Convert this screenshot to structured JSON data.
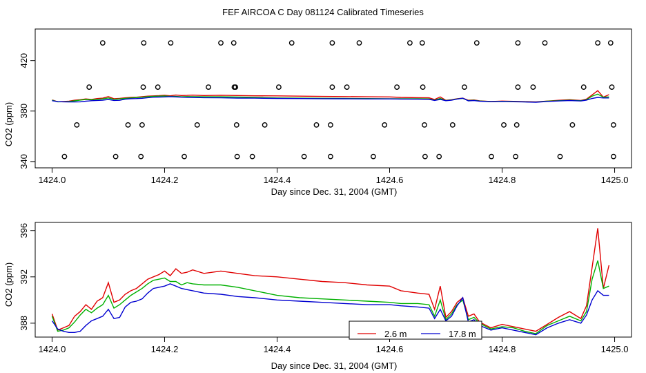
{
  "title": "FEF AIRCOA C  Day 081124  Calibrated Timeseries",
  "chart_data": [
    {
      "type": "scatter+line",
      "xlabel": "Day since Dec. 31, 2004 (GMT)",
      "ylabel": "CO2 (ppm)",
      "xlim": [
        1423.97,
        1425.03
      ],
      "ylim": [
        335,
        445
      ],
      "x_ticks": [
        1424.0,
        1424.2,
        1424.4,
        1424.6,
        1424.8,
        1425.0
      ],
      "x_tick_labels": [
        "1424.0",
        "1424.2",
        "1424.4",
        "1424.6",
        "1424.8",
        "1425.0"
      ],
      "y_ticks": [
        340,
        380,
        420
      ],
      "y_tick_labels": [
        "340",
        "380",
        "420"
      ],
      "calibration_points": {
        "x": [
          1424.09,
          1424.163,
          1424.211,
          1424.3,
          1424.323,
          1424.426,
          1424.498,
          1424.546,
          1424.636,
          1424.658,
          1424.755,
          1424.828,
          1424.876,
          1424.97,
          1424.993,
          1424.066,
          1424.162,
          1424.188,
          1424.278,
          1424.324,
          1424.326,
          1424.403,
          1424.498,
          1424.524,
          1424.613,
          1424.659,
          1424.733,
          1424.828,
          1424.855,
          1424.945,
          1424.995,
          1424.044,
          1424.135,
          1424.16,
          1424.258,
          1424.328,
          1424.378,
          1424.47,
          1424.495,
          1424.591,
          1424.662,
          1424.712,
          1424.803,
          1424.826,
          1424.925,
          1424.998,
          1424.022,
          1424.113,
          1424.158,
          1424.235,
          1424.329,
          1424.356,
          1424.448,
          1424.495,
          1424.571,
          1424.663,
          1424.688,
          1424.781,
          1424.824,
          1424.903,
          1424.998
        ],
        "y": [
          434,
          434,
          434,
          434,
          434,
          434,
          434,
          434,
          434,
          434,
          434,
          434,
          434,
          434,
          434,
          399,
          399,
          399,
          399,
          399,
          399,
          399,
          399,
          399,
          399,
          399,
          399,
          399,
          399,
          399,
          399,
          369,
          369,
          369,
          369,
          369,
          369,
          369,
          369,
          369,
          369,
          369,
          369,
          369,
          369,
          369,
          344,
          344,
          344,
          344,
          344,
          344,
          344,
          344,
          344,
          344,
          344,
          344,
          344,
          344,
          344
        ]
      }
    },
    {
      "type": "line",
      "xlabel": "Day since Dec. 31, 2004 (GMT)",
      "ylabel": "CO2 (ppm)",
      "xlim": [
        1423.97,
        1425.03
      ],
      "ylim": [
        386.8,
        396.7
      ],
      "x_ticks": [
        1424.0,
        1424.2,
        1424.4,
        1424.6,
        1424.8,
        1425.0
      ],
      "x_tick_labels": [
        "1424.0",
        "1424.2",
        "1424.4",
        "1424.6",
        "1424.8",
        "1425.0"
      ],
      "y_ticks": [
        388,
        392,
        396
      ],
      "y_tick_labels": [
        "388",
        "392",
        "396"
      ],
      "x": [
        1424.0,
        1424.01,
        1424.02,
        1424.03,
        1424.04,
        1424.05,
        1424.06,
        1424.07,
        1424.08,
        1424.09,
        1424.1,
        1424.11,
        1424.12,
        1424.13,
        1424.14,
        1424.15,
        1424.16,
        1424.17,
        1424.18,
        1424.19,
        1424.2,
        1424.21,
        1424.22,
        1424.23,
        1424.24,
        1424.25,
        1424.27,
        1424.3,
        1424.33,
        1424.36,
        1424.4,
        1424.44,
        1424.48,
        1424.52,
        1424.56,
        1424.6,
        1424.62,
        1424.65,
        1424.67,
        1424.68,
        1424.69,
        1424.7,
        1424.71,
        1424.72,
        1424.73,
        1424.74,
        1424.75,
        1424.76,
        1424.78,
        1424.8,
        1424.82,
        1424.84,
        1424.86,
        1424.88,
        1424.9,
        1424.92,
        1424.94,
        1424.95,
        1424.96,
        1424.97,
        1424.98,
        1424.99
      ],
      "series": [
        {
          "name": "2.6 m",
          "color": "#e00000",
          "values": [
            388.8,
            387.4,
            387.6,
            387.8,
            388.6,
            389.0,
            389.6,
            389.2,
            389.9,
            390.2,
            391.5,
            389.8,
            390.0,
            390.5,
            390.8,
            391.0,
            391.4,
            391.8,
            392.0,
            392.2,
            392.5,
            392.1,
            392.7,
            392.3,
            392.4,
            392.6,
            392.3,
            392.5,
            392.3,
            392.1,
            392.0,
            391.8,
            391.6,
            391.5,
            391.3,
            391.2,
            390.8,
            390.6,
            390.5,
            389.2,
            391.2,
            388.5,
            389.0,
            389.8,
            390.2,
            388.6,
            388.8,
            388.1,
            387.6,
            387.9,
            387.7,
            387.5,
            387.3,
            387.9,
            388.5,
            389.0,
            388.4,
            389.5,
            392.8,
            396.2,
            391.0,
            393.0
          ]
        },
        {
          "name": "",
          "color": "#00b000",
          "values": [
            388.6,
            387.3,
            387.4,
            387.6,
            388.1,
            388.7,
            389.2,
            388.9,
            389.3,
            389.6,
            390.4,
            389.3,
            389.6,
            390.0,
            390.4,
            390.7,
            391.0,
            391.4,
            391.7,
            391.8,
            391.9,
            391.6,
            391.6,
            391.3,
            391.5,
            391.4,
            391.3,
            391.3,
            391.1,
            390.8,
            390.4,
            390.2,
            390.1,
            390.0,
            389.9,
            389.8,
            389.7,
            389.7,
            389.6,
            388.6,
            390.0,
            388.3,
            388.8,
            389.6,
            390.0,
            388.3,
            388.5,
            388.0,
            387.5,
            387.7,
            387.6,
            387.3,
            387.1,
            387.8,
            388.2,
            388.6,
            388.2,
            389.0,
            391.8,
            393.4,
            391.0,
            391.2
          ]
        },
        {
          "name": "17.8 m",
          "color": "#0000d0",
          "values": [
            388.2,
            387.5,
            387.3,
            387.2,
            387.2,
            387.3,
            387.8,
            388.2,
            388.4,
            388.6,
            389.2,
            388.4,
            388.5,
            389.4,
            389.8,
            389.9,
            390.1,
            390.6,
            391.0,
            391.1,
            391.2,
            391.4,
            391.2,
            391.0,
            390.9,
            390.8,
            390.6,
            390.5,
            390.3,
            390.2,
            390.0,
            389.9,
            389.8,
            389.7,
            389.6,
            389.6,
            389.5,
            389.4,
            389.3,
            388.4,
            389.2,
            388.2,
            388.6,
            389.5,
            390.2,
            388.1,
            388.3,
            387.8,
            387.4,
            387.6,
            387.4,
            387.2,
            387.0,
            387.6,
            388.0,
            388.3,
            388.0,
            388.7,
            390.0,
            390.8,
            390.4,
            390.4
          ]
        }
      ],
      "legend": {
        "placement": "bottom-center",
        "entries": [
          "2.6 m",
          "17.8 m"
        ]
      }
    }
  ]
}
